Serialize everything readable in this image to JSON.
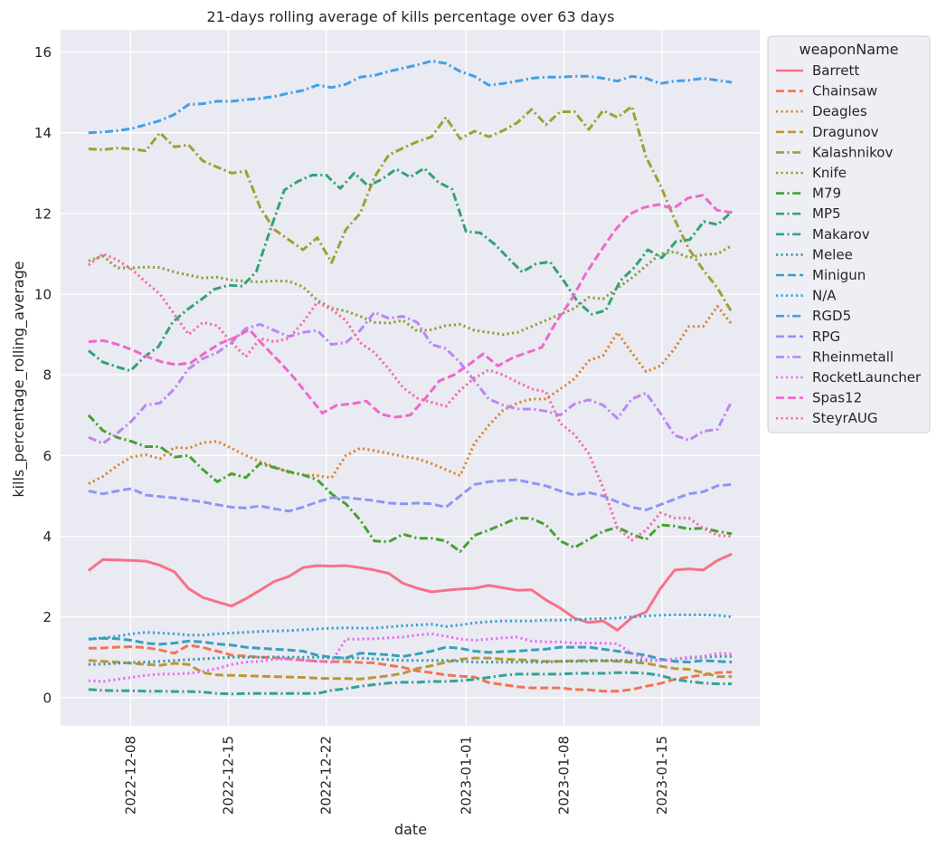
{
  "chart_data": {
    "type": "line",
    "title": "21-days rolling average of kills percentage over 63 days",
    "xlabel": "date",
    "ylabel": "kills_percentage_rolling_average",
    "x_start": "2022-12-05",
    "x_end": "2023-01-20",
    "xlim": [
      "2022-12-03",
      "2023-01-22"
    ],
    "ylim": [
      -0.7,
      16.55
    ],
    "x_ticks": [
      "2022-12-08",
      "2022-12-15",
      "2022-12-22",
      "2023-01-01",
      "2023-01-08",
      "2023-01-15"
    ],
    "y_ticks": [
      0,
      2,
      4,
      6,
      8,
      10,
      12,
      14,
      16
    ],
    "grid": true,
    "background": "#eaeaf2",
    "legend": {
      "title": "weaponName",
      "placement": "outside-right"
    },
    "series": [
      {
        "name": "Barrett",
        "color": "#f77189",
        "dash": "solid",
        "values": [
          3.15,
          3.42,
          3.41,
          3.4,
          3.38,
          3.28,
          3.12,
          2.7,
          2.48,
          2.37,
          2.27,
          2.45,
          2.66,
          2.88,
          3.0,
          3.22,
          3.27,
          3.26,
          3.27,
          3.22,
          3.16,
          3.08,
          2.83,
          2.71,
          2.62,
          2.66,
          2.69,
          2.71,
          2.78,
          2.72,
          2.66,
          2.67,
          2.42,
          2.22,
          1.97,
          1.86,
          1.9,
          1.67,
          1.98,
          2.12,
          2.7,
          3.16,
          3.19,
          3.16,
          3.4,
          3.56
        ]
      },
      {
        "name": "Chainsaw",
        "color": "#f2754f",
        "dash": "dash",
        "values": [
          1.22,
          1.23,
          1.25,
          1.26,
          1.24,
          1.18,
          1.1,
          1.3,
          1.24,
          1.15,
          1.05,
          1.03,
          1.0,
          0.99,
          0.96,
          0.93,
          0.9,
          0.89,
          0.89,
          0.87,
          0.86,
          0.8,
          0.75,
          0.66,
          0.62,
          0.56,
          0.53,
          0.51,
          0.37,
          0.32,
          0.27,
          0.24,
          0.24,
          0.24,
          0.2,
          0.19,
          0.16,
          0.16,
          0.2,
          0.28,
          0.35,
          0.45,
          0.51,
          0.56,
          0.62,
          0.63
        ]
      },
      {
        "name": "Deagles",
        "color": "#d9872f",
        "dash": "dot",
        "values": [
          5.3,
          5.48,
          5.75,
          5.96,
          6.02,
          5.92,
          6.2,
          6.18,
          6.32,
          6.35,
          6.18,
          6.0,
          5.85,
          5.72,
          5.58,
          5.52,
          5.5,
          5.45,
          6.0,
          6.18,
          6.12,
          6.05,
          5.98,
          5.92,
          5.8,
          5.65,
          5.5,
          6.3,
          6.75,
          7.12,
          7.3,
          7.4,
          7.4,
          7.65,
          7.9,
          8.35,
          8.48,
          9.05,
          8.55,
          8.08,
          8.22,
          8.65,
          9.2,
          9.2,
          9.7,
          9.25
        ]
      },
      {
        "name": "Dragunov",
        "color": "#bb9832",
        "dash": "dash",
        "values": [
          0.92,
          0.9,
          0.88,
          0.85,
          0.82,
          0.8,
          0.85,
          0.82,
          0.62,
          0.56,
          0.55,
          0.54,
          0.53,
          0.52,
          0.51,
          0.5,
          0.48,
          0.47,
          0.47,
          0.46,
          0.5,
          0.54,
          0.6,
          0.72,
          0.79,
          0.88,
          0.95,
          0.98,
          0.98,
          0.95,
          0.94,
          0.92,
          0.9,
          0.9,
          0.91,
          0.92,
          0.91,
          0.9,
          0.88,
          0.85,
          0.78,
          0.72,
          0.7,
          0.62,
          0.52,
          0.52
        ]
      },
      {
        "name": "Kalashnikov",
        "color": "#a0a032",
        "dash": "dashdot",
        "values": [
          13.6,
          13.58,
          13.62,
          13.6,
          13.55,
          14.0,
          13.65,
          13.7,
          13.3,
          13.15,
          13.0,
          13.05,
          12.15,
          11.6,
          11.35,
          11.1,
          11.4,
          10.78,
          11.6,
          12.0,
          12.9,
          13.45,
          13.62,
          13.78,
          13.9,
          14.38,
          13.85,
          14.04,
          13.9,
          14.05,
          14.25,
          14.58,
          14.2,
          14.52,
          14.52,
          14.08,
          14.55,
          14.38,
          14.65,
          13.4,
          12.7,
          11.85,
          11.12,
          10.6,
          10.15,
          9.55
        ]
      },
      {
        "name": "Knife",
        "color": "#8ba132",
        "dash": "dot",
        "values": [
          10.82,
          10.95,
          10.65,
          10.65,
          10.67,
          10.66,
          10.55,
          10.47,
          10.4,
          10.42,
          10.35,
          10.32,
          10.3,
          10.33,
          10.32,
          10.18,
          9.85,
          9.65,
          9.58,
          9.45,
          9.3,
          9.28,
          9.35,
          9.08,
          9.12,
          9.22,
          9.25,
          9.1,
          9.05,
          9.0,
          9.05,
          9.2,
          9.35,
          9.5,
          9.65,
          9.92,
          9.88,
          10.15,
          10.4,
          10.7,
          11.0,
          11.05,
          10.9,
          10.98,
          11.0,
          11.2
        ]
      },
      {
        "name": "M79",
        "color": "#46a133",
        "dash": "dashdot",
        "values": [
          7.0,
          6.62,
          6.45,
          6.35,
          6.22,
          6.22,
          5.96,
          6.0,
          5.65,
          5.35,
          5.55,
          5.45,
          5.8,
          5.7,
          5.6,
          5.52,
          5.4,
          5.05,
          4.8,
          4.4,
          3.88,
          3.86,
          4.05,
          3.95,
          3.95,
          3.88,
          3.62,
          4.02,
          4.15,
          4.3,
          4.45,
          4.44,
          4.28,
          3.88,
          3.72,
          3.92,
          4.12,
          4.22,
          4.05,
          3.92,
          4.28,
          4.25,
          4.18,
          4.2,
          4.12,
          4.06
        ]
      },
      {
        "name": "MP5",
        "color": "#33a17a",
        "dash": "dashdot",
        "values": [
          8.6,
          8.32,
          8.2,
          8.1,
          8.45,
          8.7,
          9.3,
          9.6,
          9.85,
          10.12,
          10.22,
          10.2,
          10.56,
          11.6,
          12.58,
          12.8,
          12.95,
          12.95,
          12.62,
          13.0,
          12.68,
          12.85,
          13.1,
          12.9,
          13.12,
          12.78,
          12.6,
          11.55,
          11.52,
          11.25,
          10.9,
          10.55,
          10.75,
          10.8,
          10.32,
          9.8,
          9.5,
          9.6,
          10.32,
          10.65,
          11.1,
          10.9,
          11.3,
          11.35,
          11.8,
          11.72,
          12.05
        ]
      },
      {
        "name": "Makarov",
        "color": "#34a197",
        "dash": "dashdot",
        "values": [
          0.2,
          0.18,
          0.17,
          0.17,
          0.16,
          0.16,
          0.15,
          0.15,
          0.14,
          0.1,
          0.09,
          0.1,
          0.1,
          0.1,
          0.1,
          0.1,
          0.1,
          0.18,
          0.22,
          0.28,
          0.32,
          0.36,
          0.38,
          0.38,
          0.4,
          0.4,
          0.42,
          0.45,
          0.5,
          0.55,
          0.58,
          0.58,
          0.58,
          0.58,
          0.6,
          0.6,
          0.6,
          0.62,
          0.62,
          0.6,
          0.55,
          0.45,
          0.4,
          0.36,
          0.34,
          0.34
        ]
      },
      {
        "name": "Melee",
        "color": "#359ea9",
        "dash": "dot",
        "values": [
          0.82,
          0.83,
          0.85,
          0.87,
          0.88,
          0.9,
          0.92,
          0.94,
          0.96,
          0.98,
          1.0,
          1.0,
          1.0,
          1.01,
          1.0,
          1.0,
          1.0,
          0.98,
          0.98,
          0.98,
          0.96,
          0.94,
          0.92,
          0.92,
          0.92,
          0.92,
          0.9,
          0.88,
          0.88,
          0.88,
          0.88,
          0.88,
          0.88,
          0.9,
          0.9,
          0.9,
          0.92,
          0.92,
          0.92,
          0.92,
          0.92,
          0.95,
          0.98,
          1.0,
          1.02,
          1.02
        ]
      },
      {
        "name": "Minigun",
        "color": "#38a0bb",
        "dash": "dash",
        "values": [
          1.45,
          1.47,
          1.46,
          1.42,
          1.35,
          1.32,
          1.35,
          1.4,
          1.38,
          1.33,
          1.3,
          1.25,
          1.22,
          1.2,
          1.18,
          1.15,
          1.05,
          1.0,
          0.98,
          1.1,
          1.08,
          1.06,
          1.02,
          1.08,
          1.15,
          1.25,
          1.22,
          1.15,
          1.12,
          1.14,
          1.15,
          1.18,
          1.2,
          1.25,
          1.25,
          1.25,
          1.2,
          1.15,
          1.1,
          1.05,
          0.95,
          0.9,
          0.88,
          0.92,
          0.9,
          0.88
        ]
      },
      {
        "name": "N/A",
        "color": "#39a1ce",
        "dash": "dot",
        "values": [
          1.45,
          1.48,
          1.52,
          1.58,
          1.62,
          1.6,
          1.58,
          1.55,
          1.55,
          1.58,
          1.6,
          1.62,
          1.64,
          1.65,
          1.66,
          1.68,
          1.7,
          1.72,
          1.73,
          1.72,
          1.72,
          1.75,
          1.78,
          1.8,
          1.82,
          1.76,
          1.8,
          1.85,
          1.88,
          1.9,
          1.9,
          1.9,
          1.92,
          1.92,
          1.93,
          1.95,
          1.96,
          1.97,
          2.0,
          2.02,
          2.04,
          2.05,
          2.05,
          2.05,
          2.04,
          2.0
        ]
      },
      {
        "name": "RGD5",
        "color": "#44a0e5",
        "dash": "dashdot",
        "values": [
          14.0,
          14.02,
          14.05,
          14.1,
          14.2,
          14.3,
          14.45,
          14.7,
          14.72,
          14.78,
          14.78,
          14.82,
          14.85,
          14.9,
          14.98,
          15.05,
          15.18,
          15.12,
          15.2,
          15.38,
          15.42,
          15.52,
          15.6,
          15.68,
          15.78,
          15.72,
          15.52,
          15.4,
          15.18,
          15.22,
          15.28,
          15.35,
          15.38,
          15.38,
          15.4,
          15.4,
          15.35,
          15.28,
          15.4,
          15.35,
          15.22,
          15.28,
          15.3,
          15.35,
          15.3,
          15.25
        ]
      },
      {
        "name": "RPG",
        "color": "#8e96f3",
        "dash": "dash",
        "values": [
          5.12,
          5.05,
          5.12,
          5.18,
          5.02,
          4.98,
          4.95,
          4.9,
          4.85,
          4.78,
          4.72,
          4.7,
          4.75,
          4.68,
          4.62,
          4.72,
          4.85,
          4.95,
          4.96,
          4.92,
          4.88,
          4.82,
          4.8,
          4.82,
          4.8,
          4.72,
          5.0,
          5.28,
          5.35,
          5.38,
          5.4,
          5.32,
          5.25,
          5.12,
          5.02,
          5.08,
          5.0,
          4.85,
          4.72,
          4.65,
          4.78,
          4.92,
          5.05,
          5.1,
          5.25,
          5.28
        ]
      },
      {
        "name": "Rheinmetall",
        "color": "#bc86f2",
        "dash": "dashdot",
        "values": [
          6.45,
          6.3,
          6.55,
          6.85,
          7.25,
          7.3,
          7.65,
          8.15,
          8.4,
          8.55,
          8.8,
          9.15,
          9.25,
          9.1,
          8.95,
          9.05,
          9.1,
          8.75,
          8.8,
          9.1,
          9.55,
          9.4,
          9.45,
          9.3,
          8.75,
          8.65,
          8.3,
          7.85,
          7.4,
          7.25,
          7.15,
          7.15,
          7.1,
          7.0,
          7.28,
          7.38,
          7.25,
          6.92,
          7.4,
          7.55,
          7.05,
          6.5,
          6.38,
          6.6,
          6.65,
          7.35
        ]
      },
      {
        "name": "RocketLauncher",
        "color": "#ea6cf3",
        "dash": "dot",
        "values": [
          0.42,
          0.4,
          0.45,
          0.5,
          0.55,
          0.58,
          0.58,
          0.6,
          0.65,
          0.72,
          0.82,
          0.88,
          0.9,
          0.95,
          0.95,
          0.92,
          0.9,
          0.88,
          1.45,
          1.45,
          1.46,
          1.48,
          1.5,
          1.55,
          1.58,
          1.52,
          1.45,
          1.42,
          1.45,
          1.48,
          1.5,
          1.4,
          1.38,
          1.38,
          1.35,
          1.35,
          1.35,
          1.33,
          1.1,
          0.95,
          0.92,
          0.95,
          1.0,
          1.02,
          1.1,
          1.08
        ]
      },
      {
        "name": "Spas12",
        "color": "#f067cc",
        "dash": "dash",
        "values": [
          8.82,
          8.85,
          8.75,
          8.62,
          8.45,
          8.32,
          8.25,
          8.3,
          8.55,
          8.78,
          8.92,
          9.12,
          8.72,
          8.35,
          7.95,
          7.5,
          7.05,
          7.25,
          7.28,
          7.35,
          7.02,
          6.95,
          7.0,
          7.4,
          7.85,
          8.0,
          8.25,
          8.52,
          8.22,
          8.42,
          8.55,
          8.68,
          9.32,
          9.85,
          10.5,
          11.05,
          11.58,
          11.98,
          12.15,
          12.22,
          12.12,
          12.38,
          12.45,
          12.08,
          12.02
        ]
      },
      {
        "name": "SteyrAUG",
        "color": "#f56ca2",
        "dash": "dot",
        "values": [
          10.72,
          11.0,
          10.85,
          10.62,
          10.3,
          10.0,
          9.5,
          9.0,
          9.3,
          9.22,
          8.8,
          8.45,
          8.9,
          8.82,
          8.9,
          9.3,
          9.8,
          9.62,
          9.35,
          8.8,
          8.55,
          8.15,
          7.68,
          7.42,
          7.32,
          7.22,
          7.62,
          7.92,
          8.12,
          8.0,
          7.82,
          7.65,
          7.58,
          6.8,
          6.52,
          6.05,
          5.2,
          4.2,
          3.9,
          4.15,
          4.58,
          4.45,
          4.45,
          4.2,
          4.02,
          4.0
        ]
      }
    ]
  }
}
